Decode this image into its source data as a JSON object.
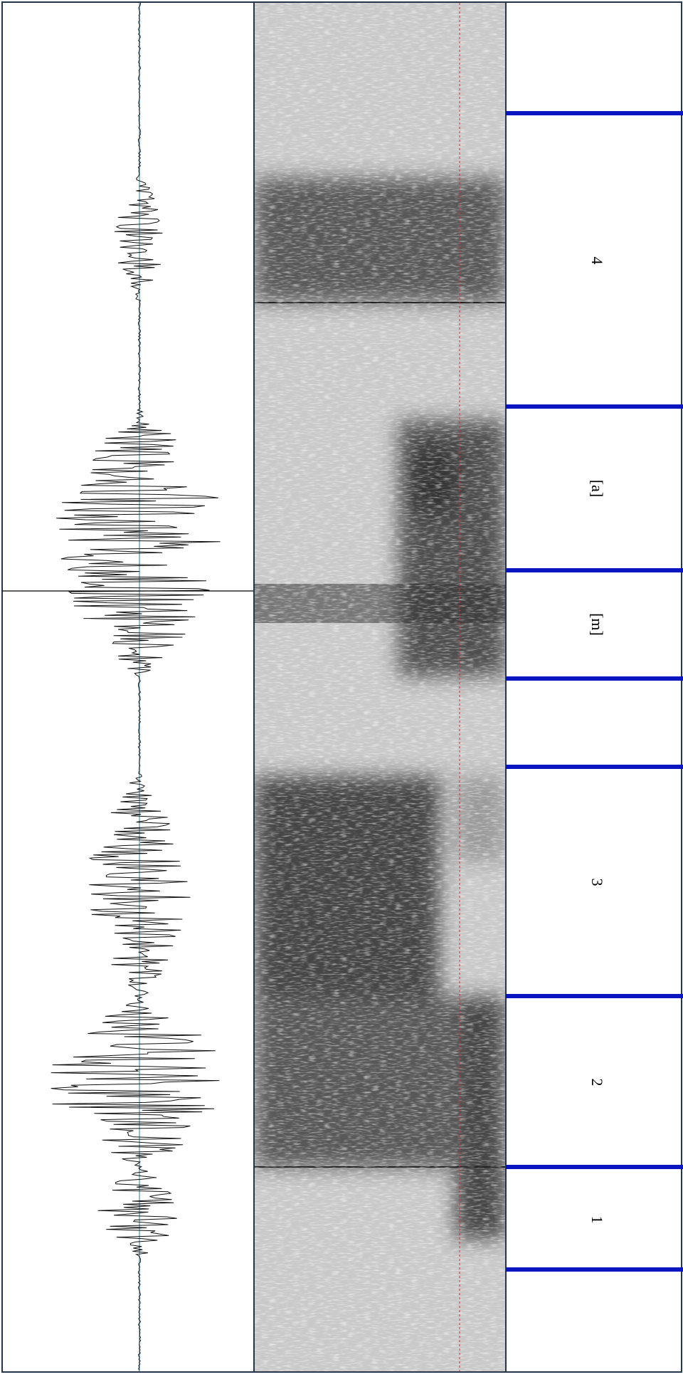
{
  "tier": {
    "intervals": [
      {
        "label": "4"
      },
      {
        "label": "[a]"
      },
      {
        "label": "[m]"
      },
      {
        "label": "3"
      },
      {
        "label": "2"
      },
      {
        "label": "1"
      }
    ]
  }
}
